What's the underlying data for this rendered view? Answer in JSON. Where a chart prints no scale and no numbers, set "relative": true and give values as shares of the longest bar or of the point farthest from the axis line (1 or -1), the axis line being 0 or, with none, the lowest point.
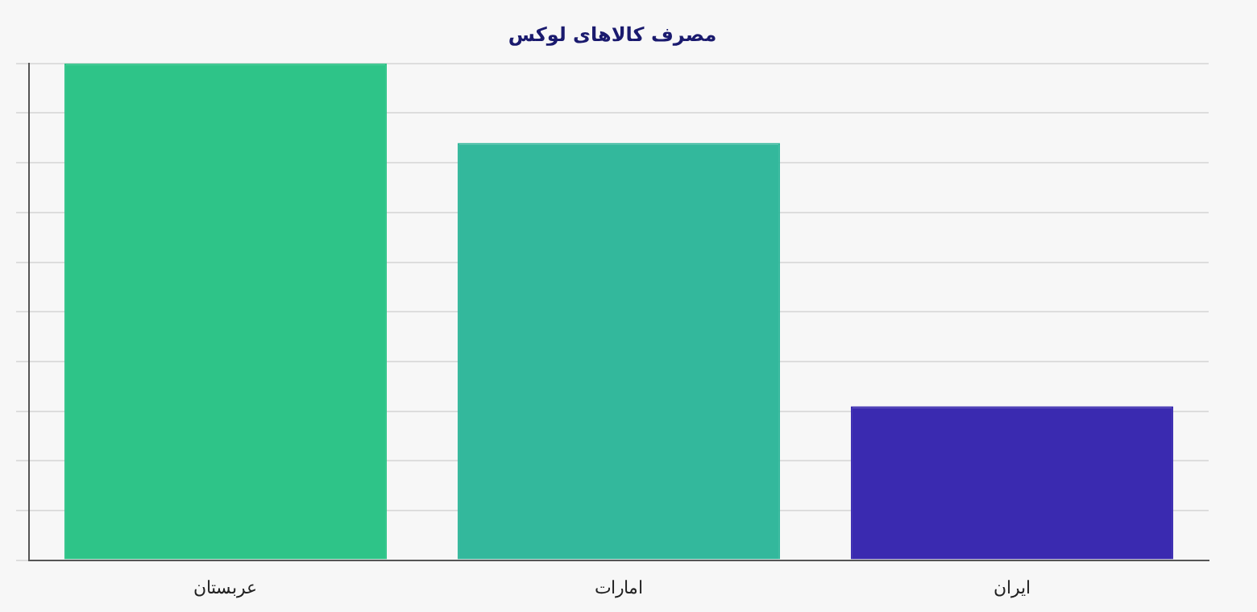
{
  "chart_data": {
    "type": "bar",
    "title": "مصرف کالاهای لوکس",
    "categories": [
      "عربستان",
      "امارات",
      "ایران"
    ],
    "relative": true,
    "values": [
      1,
      0.84,
      0.31
    ],
    "colors": [
      "#2ec488",
      "#33b89c",
      "#3a2ab0"
    ],
    "grid": "y"
  }
}
